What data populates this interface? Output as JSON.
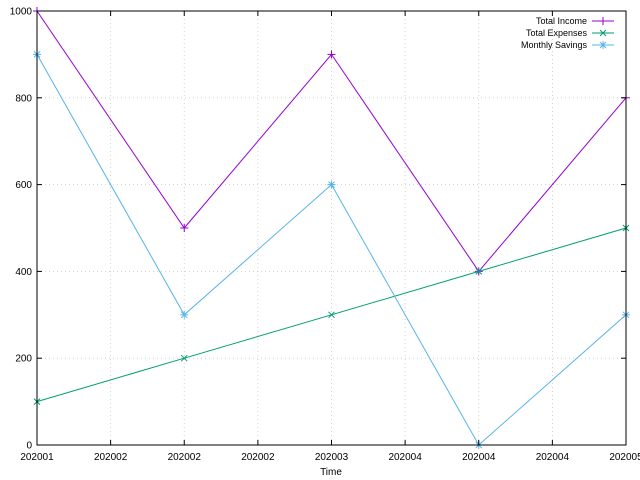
{
  "chart_data": {
    "type": "line",
    "title": "",
    "xlabel": "Time",
    "ylabel": "",
    "x": [
      0,
      1,
      2,
      3,
      4
    ],
    "x_tick_labels": [
      "202001",
      "202002",
      "202002",
      "202002",
      "202003",
      "202004",
      "202004",
      "202004",
      "202005"
    ],
    "y_ticks": [
      0,
      200,
      400,
      600,
      800,
      1000
    ],
    "ylim": [
      0,
      1000
    ],
    "grid": true,
    "legend_position": "top-right",
    "series": [
      {
        "name": "Total Income",
        "values": [
          1000,
          500,
          900,
          400,
          800
        ],
        "color": "#9400d3",
        "marker": "plus"
      },
      {
        "name": "Total Expenses",
        "values": [
          100,
          200,
          300,
          400,
          500
        ],
        "color": "#009e73",
        "marker": "cross"
      },
      {
        "name": "Monthly Savings",
        "values": [
          900,
          300,
          600,
          0,
          300
        ],
        "color": "#56b4e9",
        "marker": "star"
      }
    ]
  }
}
